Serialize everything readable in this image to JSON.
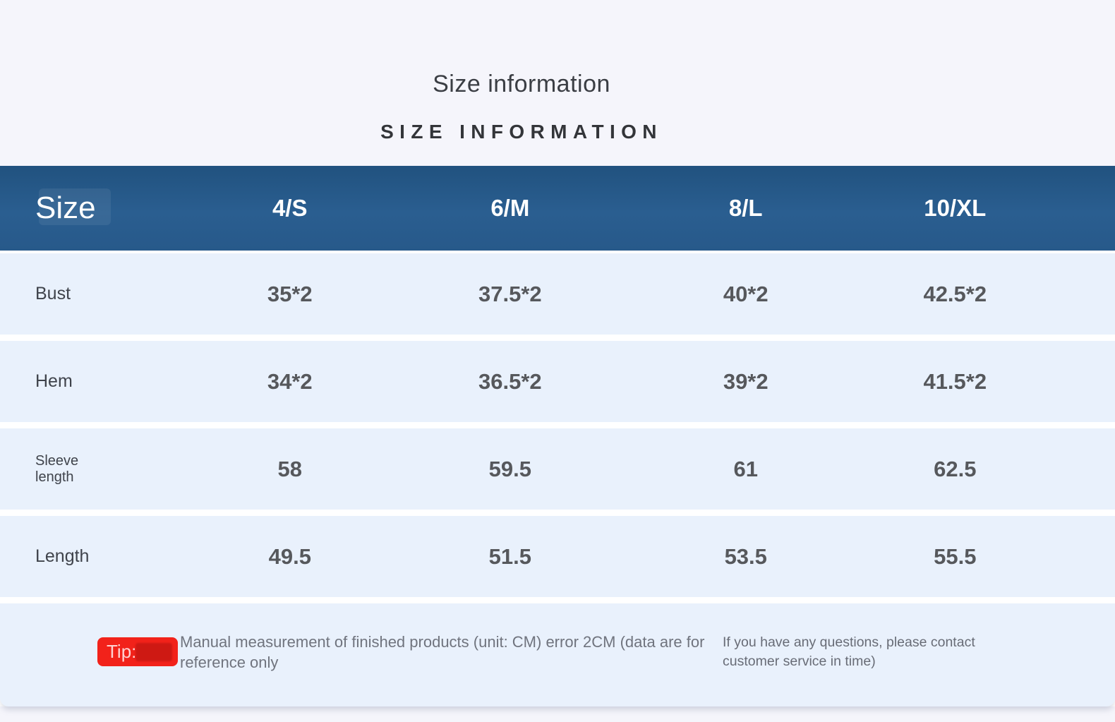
{
  "header": {
    "title": "Size information",
    "subtitle": "SIZE INFORMATION"
  },
  "table": {
    "columns": [
      "Size",
      "4/S",
      "6/M",
      "8/L",
      "10/XL"
    ],
    "rows": [
      {
        "label": "Bust",
        "values": [
          "35*2",
          "37.5*2",
          "40*2",
          "42.5*2"
        ]
      },
      {
        "label": "Hem",
        "values": [
          "34*2",
          "36.5*2",
          "39*2",
          "41.5*2"
        ]
      },
      {
        "label": "Sleeve length",
        "values": [
          "58",
          "59.5",
          "61",
          "62.5"
        ]
      },
      {
        "label": "Length",
        "values": [
          "49.5",
          "51.5",
          "53.5",
          "55.5"
        ]
      }
    ]
  },
  "tip": {
    "badge_label": "Tip:",
    "text": "Manual measurement of finished products (unit: CM) error 2CM (data are for reference only",
    "note": "If you have any questions, please contact customer service in time)"
  },
  "colors": {
    "page_bg": "#f5f5fb",
    "header_bg": "#27598a",
    "row_bg": "#e9f1fc",
    "badge_red": "#f2221a"
  }
}
